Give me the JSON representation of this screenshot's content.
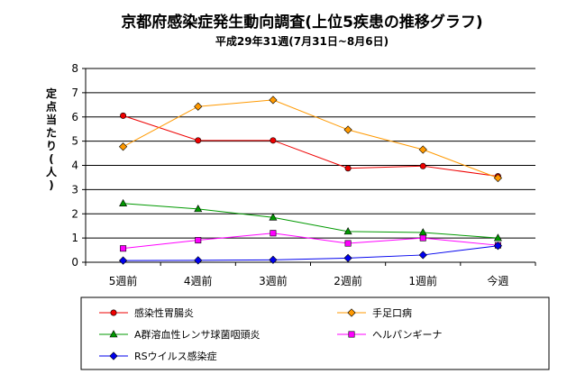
{
  "chart_data": {
    "type": "line",
    "title": "京都府感染症発生動向調査(上位5疾患の推移グラフ)",
    "subtitle": "平成29年31週(7月31日~8月6日)",
    "ylabel": "定点当たり(人)",
    "xlabel": "",
    "categories": [
      "5週前",
      "4週前",
      "3週前",
      "2週前",
      "1週前",
      "今週"
    ],
    "ylim": [
      0,
      8
    ],
    "yticks": [
      0,
      1,
      2,
      3,
      4,
      5,
      6,
      7,
      8
    ],
    "grid": "horizontal",
    "legend_position": "bottom",
    "series": [
      {
        "name": "感染性胃腸炎",
        "color": "#ee0000",
        "marker": "circle",
        "values": [
          6.05,
          5.03,
          5.03,
          3.88,
          3.97,
          3.55
        ]
      },
      {
        "name": "手足口病",
        "color": "#ff9900",
        "marker": "diamond",
        "values": [
          4.77,
          6.43,
          6.7,
          5.47,
          4.65,
          3.48
        ]
      },
      {
        "name": "A群溶血性レンサ球菌咽頭炎",
        "color": "#009900",
        "marker": "triangle",
        "values": [
          2.43,
          2.2,
          1.85,
          1.27,
          1.23,
          1.0
        ]
      },
      {
        "name": "ヘルパンギーナ",
        "color": "#ff00ff",
        "marker": "square",
        "values": [
          0.57,
          0.91,
          1.2,
          0.78,
          1.0,
          0.7
        ]
      },
      {
        "name": "RSウイルス感染症",
        "color": "#0000ee",
        "marker": "diamond",
        "values": [
          0.07,
          0.08,
          0.1,
          0.17,
          0.3,
          0.68
        ]
      }
    ]
  }
}
